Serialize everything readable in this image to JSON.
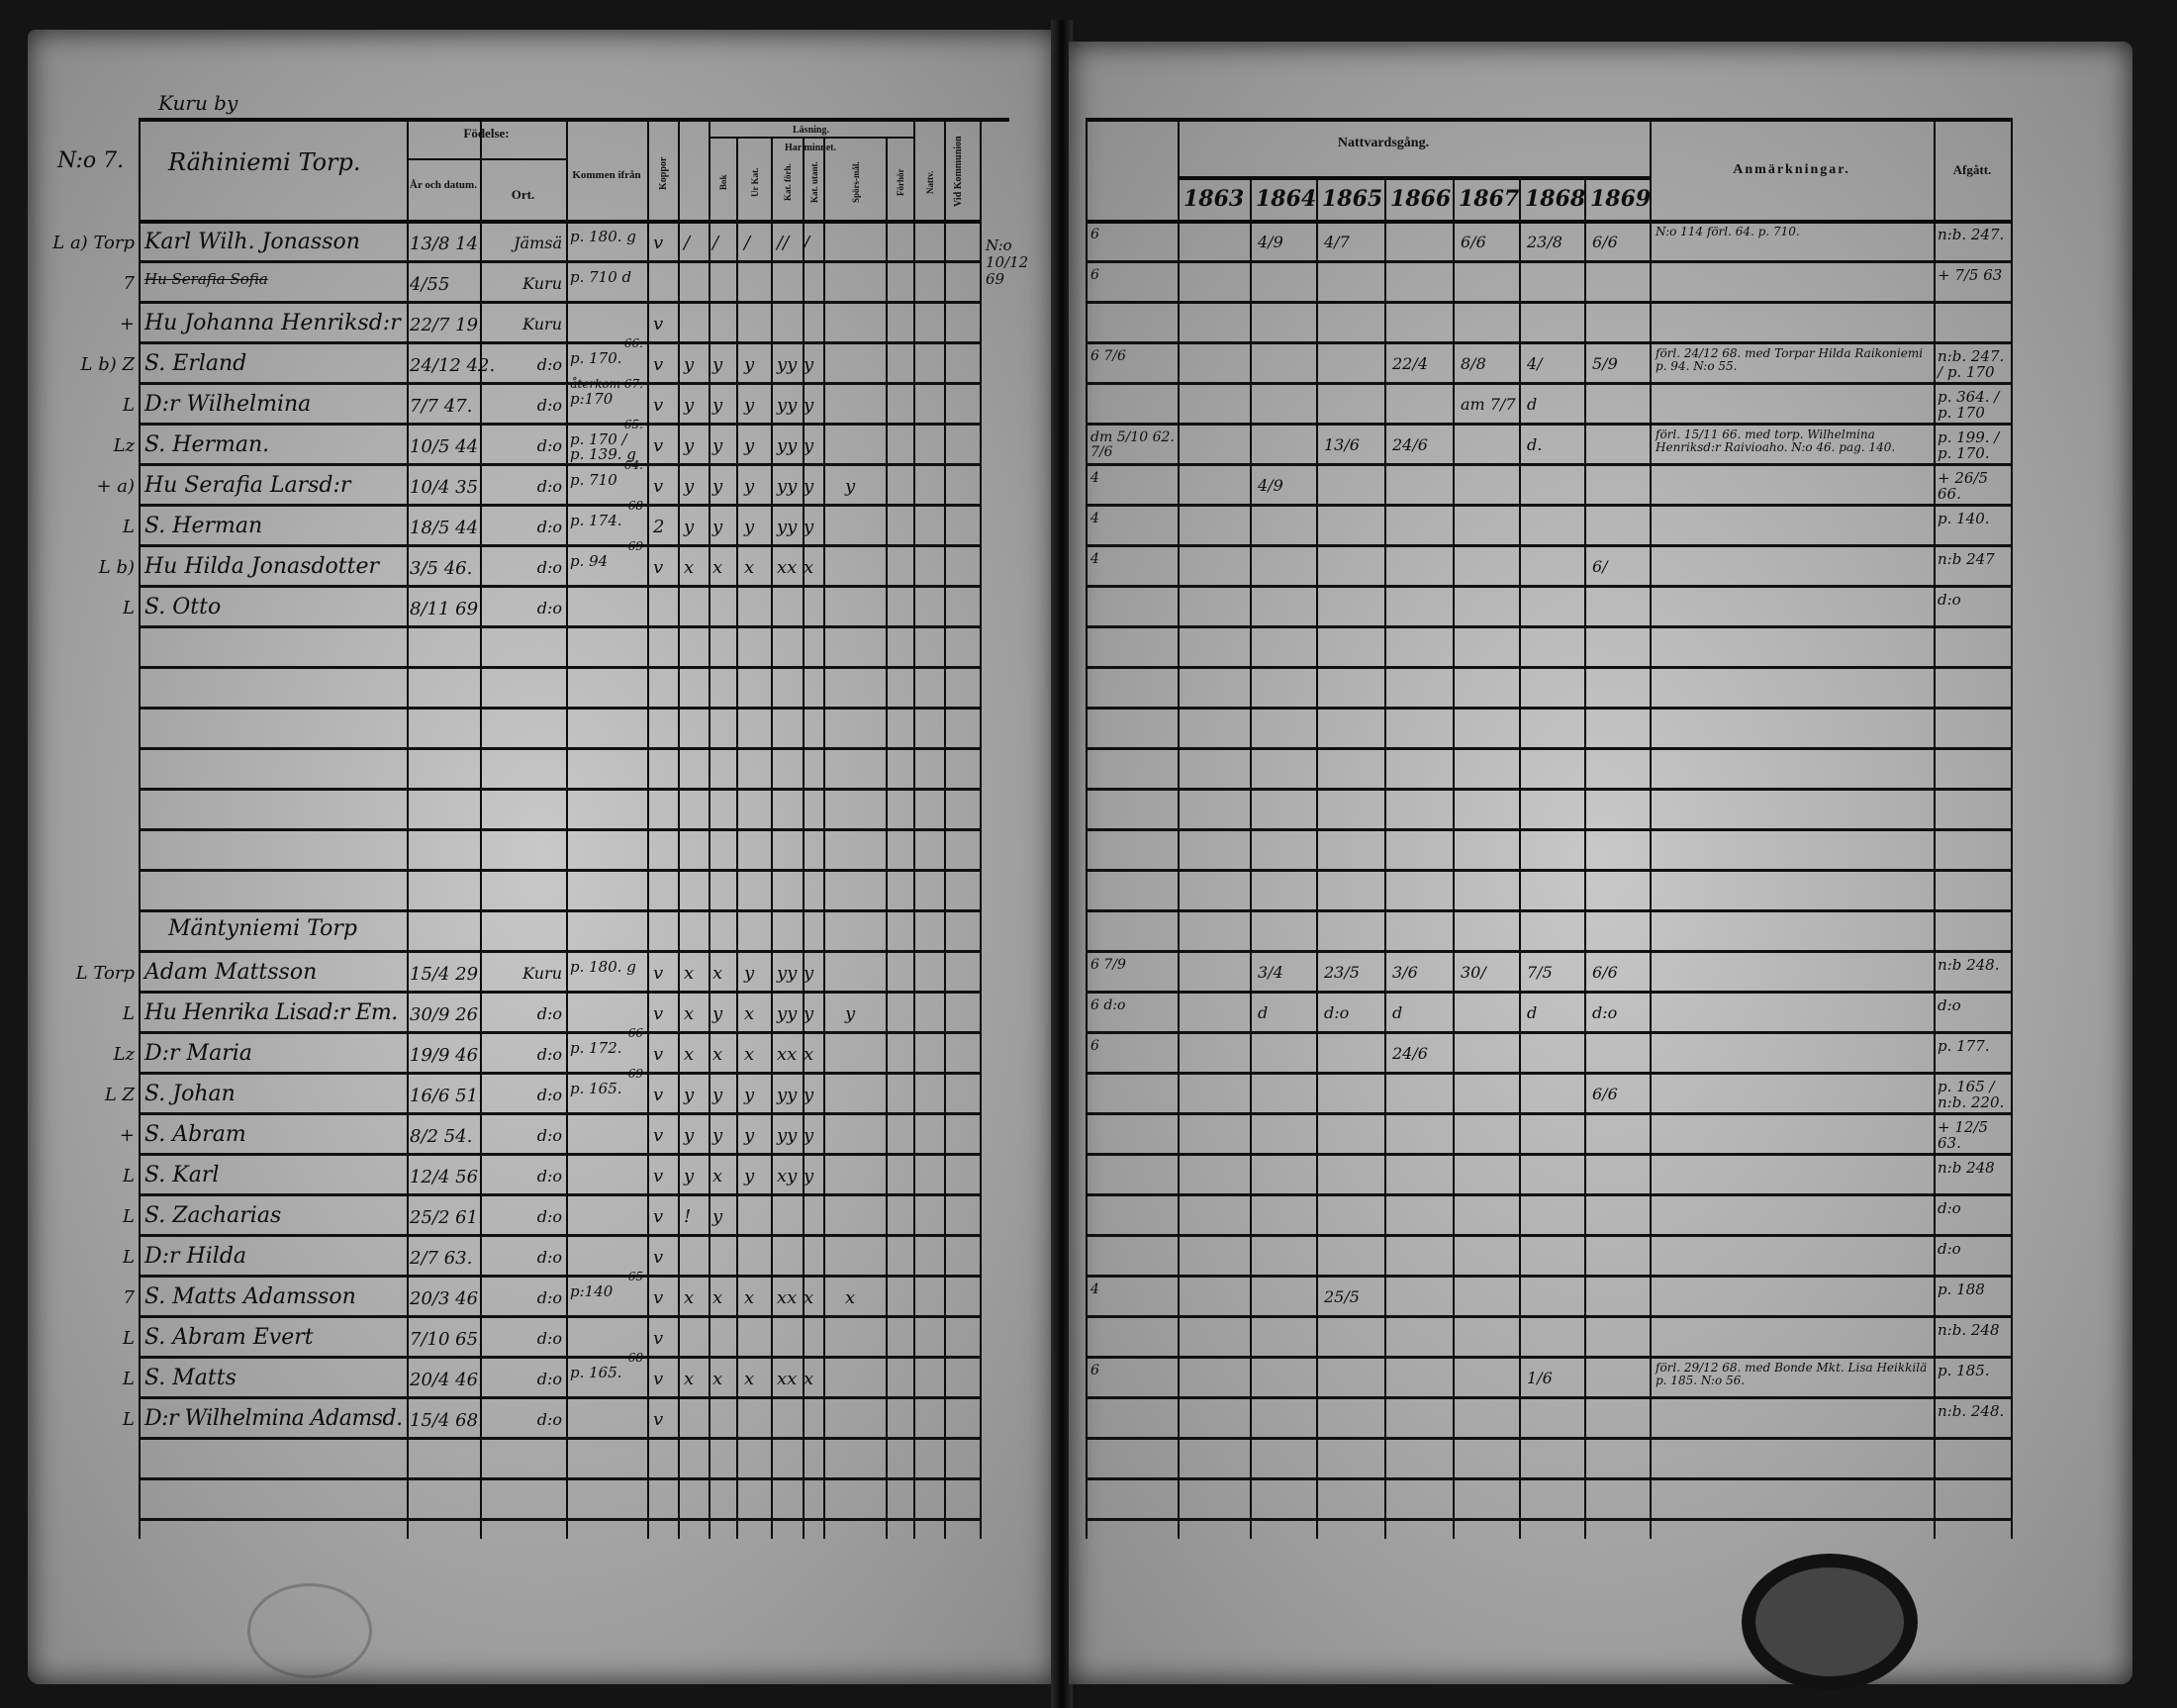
{
  "village": "Kuru by",
  "page_no": "N:o 7.",
  "side_note": "N:o 10/12 69",
  "left_header": {
    "name_col": "Rähiniemi Torp.",
    "birth": "Födelse:",
    "year_date": "År och datum.",
    "place": "Ort.",
    "came_from": "Kommen ifrån",
    "vaccinated": "Koppor",
    "reading": "Läsning.",
    "memory": "Har minnet.",
    "sub_cols": [
      "Bok",
      "Ur Kat.",
      "Kat. förh.",
      "Kat. utant.",
      "Spörs-mål.",
      "Förhör",
      "Nattv."
    ],
    "communion": "Vid Kommunion"
  },
  "right_header": {
    "communion": "Nattvardsgång.",
    "years": [
      "1863",
      "1864",
      "1865",
      "1866",
      "1867",
      "1868",
      "1869"
    ],
    "remarks": "Anmärkningar.",
    "departed": "Afgått."
  },
  "household_1": [
    {
      "margin": "L a) Torp",
      "name": "Karl Wilh. Jonasson",
      "born": "13/8 14.",
      "place": "Jämsä",
      "from": "p. 180. g",
      "marks": [
        "v",
        "/",
        "/",
        "/",
        "//",
        "/",
        ""
      ],
      "col0": "6",
      "years": [
        "",
        "4/9",
        "4/7",
        "",
        "6/6",
        "23/8",
        "6/6"
      ],
      "remark": "N:o 114 förl. 64. p. 710.",
      "departed": "n:b. 247."
    },
    {
      "margin": "7",
      "name": "Hu Serafia Sofia",
      "struck": true,
      "born": "4/55",
      "place": "Kuru",
      "from": "p. 710 d",
      "marks": [
        "",
        "",
        "",
        "",
        "",
        "",
        ""
      ],
      "col0": "6",
      "years": [
        "",
        "",
        "",
        "",
        "",
        "",
        ""
      ],
      "remark": "",
      "departed": "+ 7/5 63"
    },
    {
      "margin": "+",
      "name": "Hu Johanna Henriksd:r",
      "born": "22/7 19.",
      "place": "Kuru",
      "from": "",
      "marks": [
        "v",
        "",
        "",
        "",
        "",
        "",
        ""
      ],
      "col0": "",
      "years": [
        "",
        "",
        "",
        "",
        "",
        "",
        ""
      ],
      "remark": "",
      "departed": ""
    },
    {
      "margin": "L b) Z",
      "name": "S. Erland",
      "born": "24/12 42.",
      "place": "d:o",
      "from": "p. 170.",
      "from_note": "66.",
      "marks": [
        "v",
        "y",
        "y",
        "y",
        "yy",
        "y",
        ""
      ],
      "col0": "6 7/6",
      "years": [
        "",
        "",
        "",
        "22/4",
        "8/8",
        "4/",
        "5/9"
      ],
      "remark": "förl. 24/12 68. med Torpar Hilda Raikoniemi p. 94. N:o 55.",
      "departed": "n:b. 247. / p. 170"
    },
    {
      "margin": "L",
      "name": "D:r Wilhelmina",
      "born": "7/7 47.",
      "place": "d:o",
      "from": "p:170",
      "from_note": "återkom 67.",
      "marks": [
        "v",
        "y",
        "y",
        "y",
        "yy",
        "y",
        ""
      ],
      "col0": "",
      "years": [
        "",
        "",
        "",
        "",
        "am 7/7",
        "d",
        ""
      ],
      "remark": "",
      "departed": "p. 364. / p. 170"
    },
    {
      "margin": "Lz",
      "name": "S. Herman.",
      "born": "10/5 44",
      "place": "d:o",
      "from": "p. 170 / p. 139. g",
      "from_note": "65.",
      "marks": [
        "v",
        "y",
        "y",
        "y",
        "yy",
        "y",
        ""
      ],
      "col0": "dm 5/10 62. 7/6",
      "years": [
        "",
        "",
        "13/6",
        "24/6",
        "",
        "d.",
        ""
      ],
      "remark": "förl. 15/11 66. med torp. Wilhelmina Henriksd:r Raivioaho. N:o 46. pag. 140.",
      "departed": "p. 199. / p. 170."
    },
    {
      "margin": "+ a)",
      "name": "Hu Serafia Larsd:r",
      "born": "10/4 35.",
      "place": "d:o",
      "from": "p. 710",
      "from_note": "64.",
      "marks": [
        "v",
        "y",
        "y",
        "y",
        "yy",
        "y",
        "y"
      ],
      "col0": "4",
      "years": [
        "",
        "4/9",
        "",
        "",
        "",
        "",
        ""
      ],
      "remark": "",
      "departed": "+ 26/5 66."
    },
    {
      "margin": "L",
      "name": "S. Herman",
      "born": "18/5 44.",
      "place": "d:o",
      "from": "p. 174.",
      "from_note": "68",
      "marks": [
        "2",
        "y",
        "y",
        "y",
        "yy",
        "y",
        ""
      ],
      "col0": "4",
      "years": [
        "",
        "",
        "",
        "",
        "",
        "",
        ""
      ],
      "remark": "",
      "departed": "p. 140."
    },
    {
      "margin": "L b)",
      "name": "Hu Hilda Jonasdotter",
      "born": "3/5 46.",
      "place": "d:o",
      "from": "p. 94",
      "from_note": "69",
      "marks": [
        "v",
        "x",
        "x",
        "x",
        "xx",
        "x",
        ""
      ],
      "col0": "4",
      "years": [
        "",
        "",
        "",
        "",
        "",
        "",
        "6/"
      ],
      "remark": "",
      "departed": "n:b 247"
    },
    {
      "margin": "L",
      "name": "S. Otto",
      "born": "8/11 69",
      "place": "d:o",
      "from": "",
      "marks": [
        "",
        "",
        "",
        "",
        "",
        "",
        ""
      ],
      "col0": "",
      "years": [
        "",
        "",
        "",
        "",
        "",
        "",
        ""
      ],
      "remark": "",
      "departed": "d:o"
    }
  ],
  "household_2_title": "Mäntyniemi Torp",
  "household_2": [
    {
      "margin": "L Torp",
      "name": "Adam Mattsson",
      "born": "15/4 29.",
      "place": "Kuru",
      "from": "p. 180. g",
      "marks": [
        "v",
        "x",
        "x",
        "y",
        "yy",
        "y",
        ""
      ],
      "col0": "6 7/9",
      "years": [
        "",
        "3/4",
        "23/5",
        "3/6",
        "30/",
        "7/5",
        "6/6"
      ],
      "remark": "",
      "departed": "n:b 248."
    },
    {
      "margin": "L",
      "name": "Hu Henrika Lisad:r Em.",
      "born": "30/9 26.",
      "place": "d:o",
      "from": "",
      "marks": [
        "v",
        "x",
        "y",
        "x",
        "yy",
        "y",
        "y"
      ],
      "col0": "6 d:o",
      "years": [
        "",
        "d",
        "d:o",
        "d",
        "",
        "d",
        "d:o"
      ],
      "remark": "",
      "departed": "d:o"
    },
    {
      "margin": "Lz",
      "name": "D:r Maria",
      "born": "19/9 46.",
      "place": "d:o",
      "from": "p. 172.",
      "from_note": "66",
      "marks": [
        "v",
        "x",
        "x",
        "x",
        "xx",
        "x",
        ""
      ],
      "col0": "6",
      "years": [
        "",
        "",
        "",
        "24/6",
        "",
        "",
        ""
      ],
      "remark": "",
      "departed": "p. 177."
    },
    {
      "margin": "L Z",
      "name": "S. Johan",
      "born": "16/6 51.",
      "place": "d:o",
      "from": "p. 165.",
      "from_note": "69",
      "marks": [
        "v",
        "y",
        "y",
        "y",
        "yy",
        "y",
        ""
      ],
      "col0": "",
      "years": [
        "",
        "",
        "",
        "",
        "",
        "",
        "6/6"
      ],
      "remark": "",
      "departed": "p. 165 / n:b. 220."
    },
    {
      "margin": "+",
      "name": "S. Abram",
      "born": "8/2 54.",
      "place": "d:o",
      "from": "",
      "marks": [
        "v",
        "y",
        "y",
        "y",
        "yy",
        "y",
        ""
      ],
      "col0": "",
      "years": [
        "",
        "",
        "",
        "",
        "",
        "",
        ""
      ],
      "remark": "",
      "departed": "+ 12/5 63."
    },
    {
      "margin": "L",
      "name": "S. Karl",
      "born": "12/4 56.",
      "place": "d:o",
      "from": "",
      "marks": [
        "v",
        "y",
        "x",
        "y",
        "xy",
        "y",
        ""
      ],
      "col0": "",
      "years": [
        "",
        "",
        "",
        "",
        "",
        "",
        ""
      ],
      "remark": "",
      "departed": "n:b 248"
    },
    {
      "margin": "L",
      "name": "S. Zacharias",
      "born": "25/2 61.",
      "place": "d:o",
      "from": "",
      "marks": [
        "v",
        "!",
        "y",
        "",
        "",
        "",
        ""
      ],
      "col0": "",
      "years": [
        "",
        "",
        "",
        "",
        "",
        "",
        ""
      ],
      "remark": "",
      "departed": "d:o"
    },
    {
      "margin": "L",
      "name": "D:r Hilda",
      "born": "2/7 63.",
      "place": "d:o",
      "from": "",
      "marks": [
        "v",
        "",
        "",
        "",
        "",
        "",
        ""
      ],
      "col0": "",
      "years": [
        "",
        "",
        "",
        "",
        "",
        "",
        ""
      ],
      "remark": "",
      "departed": "d:o"
    },
    {
      "margin": "7",
      "name": "S. Matts Adamsson",
      "born": "20/3 46",
      "place": "d:o",
      "from": "p:140",
      "from_note": "65",
      "marks": [
        "v",
        "x",
        "x",
        "x",
        "xx",
        "x",
        "x"
      ],
      "col0": "4",
      "years": [
        "",
        "",
        "25/5",
        "",
        "",
        "",
        ""
      ],
      "remark": "",
      "departed": "p. 188"
    },
    {
      "margin": "L",
      "name": "S. Abram Evert",
      "born": "7/10 65.",
      "place": "d:o",
      "from": "",
      "marks": [
        "v",
        "",
        "",
        "",
        "",
        "",
        ""
      ],
      "col0": "",
      "years": [
        "",
        "",
        "",
        "",
        "",
        "",
        ""
      ],
      "remark": "",
      "departed": "n:b. 248"
    },
    {
      "margin": "L",
      "name": "S. Matts",
      "born": "20/4 46.",
      "place": "d:o",
      "from": "p. 165.",
      "from_note": "68",
      "marks": [
        "v",
        "x",
        "x",
        "x",
        "xx",
        "x",
        ""
      ],
      "col0": "6",
      "years": [
        "",
        "",
        "",
        "",
        "",
        "1/6",
        ""
      ],
      "remark": "förl. 29/12 68. med Bonde Mkt. Lisa Heikkilä p. 185. N:o 56.",
      "departed": "p. 185."
    },
    {
      "margin": "L",
      "name": "D:r Wilhelmina Adamsd.",
      "born": "15/4 68.",
      "place": "d:o",
      "from": "",
      "marks": [
        "v",
        "",
        "",
        "",
        "",
        "",
        ""
      ],
      "col0": "",
      "years": [
        "",
        "",
        "",
        "",
        "",
        "",
        ""
      ],
      "remark": "",
      "departed": "n:b. 248."
    }
  ]
}
